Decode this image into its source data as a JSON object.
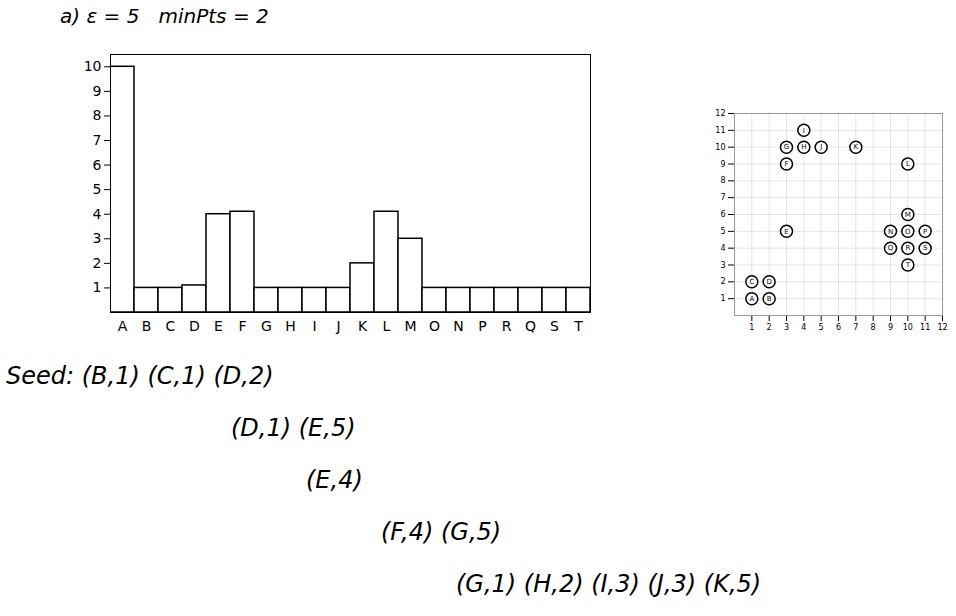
{
  "chart_data": [
    {
      "type": "bar",
      "title": "a) ε = 5   minPts = 2",
      "categories": [
        "A",
        "B",
        "C",
        "D",
        "E",
        "F",
        "G",
        "H",
        "I",
        "J",
        "K",
        "L",
        "M",
        "O",
        "N",
        "P",
        "R",
        "Q",
        "S",
        "T"
      ],
      "values": [
        10,
        1,
        1,
        1.1,
        4,
        4.1,
        1,
        1,
        1,
        1,
        2,
        4.1,
        3,
        1,
        1,
        1,
        1,
        1,
        1,
        1
      ],
      "color": "#000000",
      "ylim": [
        0,
        10.5
      ],
      "yticks": [
        1,
        2,
        3,
        4,
        5,
        6,
        7,
        8,
        9,
        10
      ],
      "grid": false,
      "annotations": [
        "Seed: (B,1) (C,1) (D,2)",
        "(D,1) (E,5)",
        "(E,4)",
        "(F,4) (G,5)",
        "(G,1) (H,2) (I,3) (J,3) (K,5)"
      ]
    },
    {
      "type": "scatter",
      "labels": [
        "A",
        "B",
        "C",
        "D",
        "E",
        "F",
        "G",
        "H",
        "I",
        "J",
        "K",
        "L",
        "M",
        "N",
        "O",
        "P",
        "Q",
        "R",
        "S",
        "T"
      ],
      "x": [
        1,
        2,
        1,
        2,
        3,
        3,
        3,
        4,
        4,
        5,
        7,
        10,
        10,
        9,
        10,
        11,
        9,
        10,
        11,
        10
      ],
      "y": [
        1,
        1,
        2,
        2,
        5,
        9,
        10,
        10,
        11,
        10,
        10,
        9,
        6,
        5,
        5,
        5,
        4,
        4,
        4,
        3
      ],
      "color": "#000000",
      "xlim": [
        0,
        12
      ],
      "ylim": [
        0,
        12
      ],
      "xticks": [
        1,
        2,
        3,
        4,
        5,
        6,
        7,
        8,
        9,
        10,
        11,
        12
      ],
      "yticks": [
        1,
        2,
        3,
        4,
        5,
        6,
        7,
        8,
        9,
        10,
        11,
        12
      ],
      "grid": true
    }
  ]
}
